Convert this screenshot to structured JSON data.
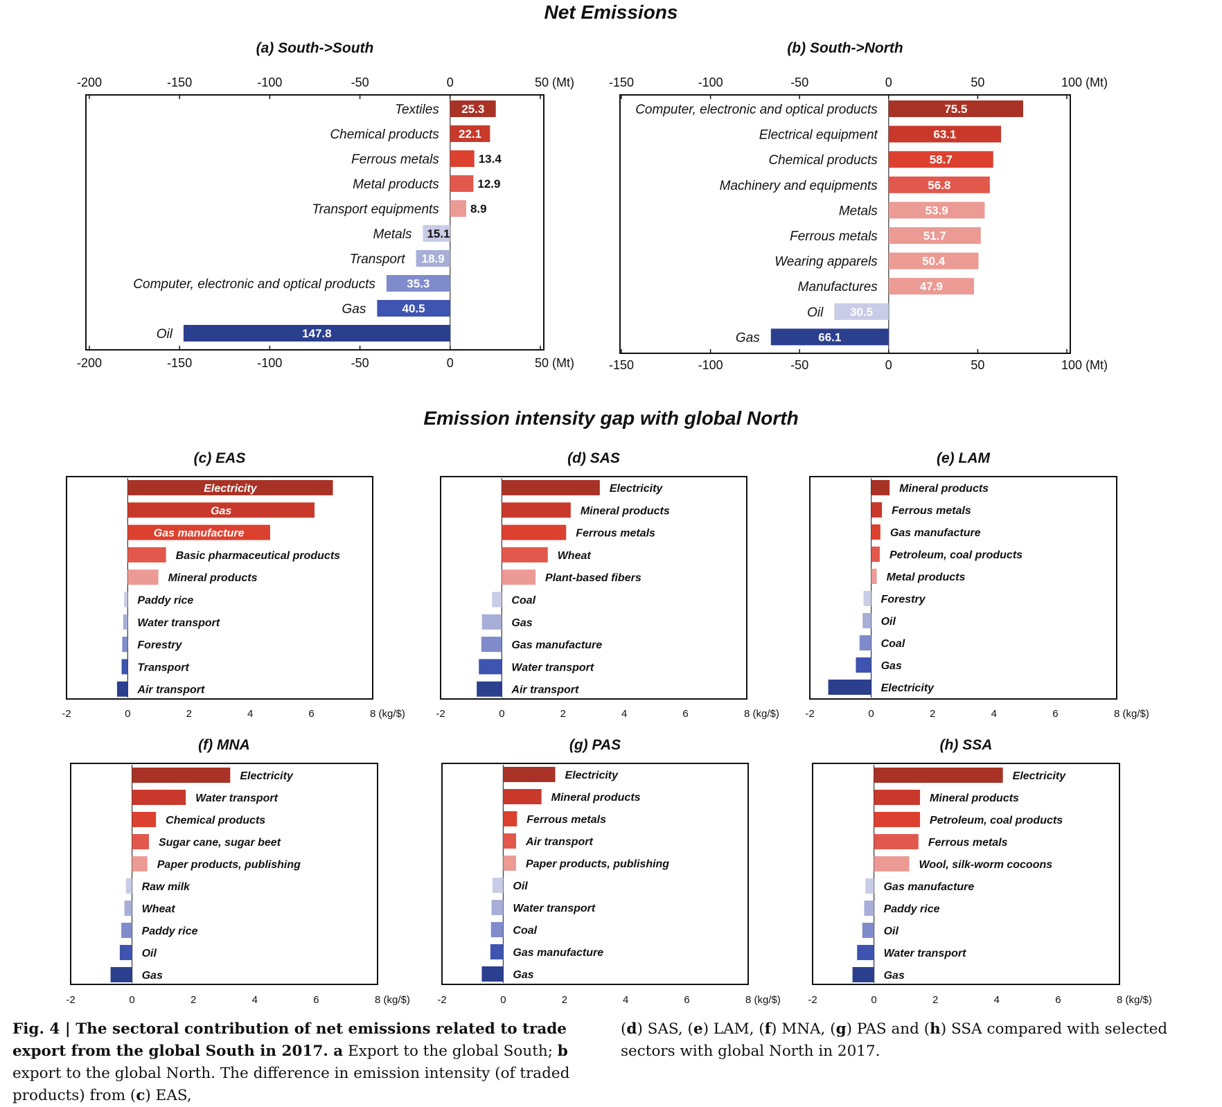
{
  "titles": {
    "net_emissions": "Net Emissions",
    "intensity_gap": "Emission intensity gap with global North"
  },
  "colors": {
    "red_scale": [
      "#a93226",
      "#c8392b",
      "#dc4130",
      "#e2584c",
      "#ec9a94"
    ],
    "blue_scale": [
      "#c8cce6",
      "#a7aed8",
      "#7f8bcb",
      "#3f54b0",
      "#2b3f8f"
    ],
    "text_white": "#ffffff"
  },
  "caption": {
    "fig": "Fig. 4 | ",
    "title": "The sectoral contribution of net emissions related to trade export from the global South in 2017. ",
    "a": "a",
    "a_text": " Export to the global South; ",
    "b": "b",
    "b_text": " export to the global North. The difference in emission intensity (of traded products) from (",
    "c": "c",
    "c_text": ") EAS,",
    "d": "d",
    "d_text": ") SAS, (",
    "e": "e",
    "e_text": ") LAM, (",
    "f": "f",
    "f_text": ") MNA, (",
    "g": "g",
    "g_text": ") PAS and (",
    "h": "h",
    "h_text": ") SSA compared with selected sectors with global North in 2017.",
    "open_paren": "(",
    "close_paren": ")"
  },
  "chart_data": [
    {
      "id": "a",
      "type": "bar",
      "orientation": "horizontal",
      "title": "(a) South->South",
      "unit": "(Mt)",
      "xlim": [
        -200,
        50
      ],
      "ticks": [
        -200,
        -150,
        -100,
        -50,
        0,
        50
      ],
      "tick_labels_top": true,
      "tick_labels_bottom": true,
      "categories": [
        "Textiles",
        "Chemical products",
        "Ferrous metals",
        "Metal products",
        "Transport equipments",
        "Metals",
        "Transport",
        "Computer, electronic and optical products",
        "Gas",
        "Oil"
      ],
      "values": [
        25.3,
        22.1,
        13.4,
        12.9,
        8.9,
        -15.1,
        -18.9,
        -35.3,
        -40.5,
        -147.8
      ],
      "value_labels": [
        "25.3",
        "22.1",
        "13.4",
        "12.9",
        "8.9",
        "15.1",
        "18.9",
        "35.3",
        "40.5",
        "147.8"
      ]
    },
    {
      "id": "b",
      "type": "bar",
      "orientation": "horizontal",
      "title": "(b) South->North",
      "unit": "(Mt)",
      "xlim": [
        -150,
        100
      ],
      "ticks": [
        -150,
        -100,
        -50,
        0,
        50,
        100
      ],
      "tick_labels_top": true,
      "tick_labels_bottom": true,
      "categories": [
        "Computer, electronic and optical products",
        "Electrical equipment",
        "Chemical products",
        "Machinery and equipments",
        "Metals",
        "Ferrous metals",
        "Wearing apparels",
        "Manufactures",
        "Oil",
        "Gas"
      ],
      "values": [
        75.5,
        63.1,
        58.7,
        56.8,
        53.9,
        51.7,
        50.4,
        47.9,
        -30.5,
        -66.1
      ],
      "value_labels": [
        "75.5",
        "63.1",
        "58.7",
        "56.8",
        "53.9",
        "51.7",
        "50.4",
        "47.9",
        "30.5",
        "66.1"
      ]
    },
    {
      "id": "c",
      "type": "bar",
      "orientation": "horizontal",
      "title": "(c) EAS",
      "unit": "(kg/$)",
      "xlim": [
        -2,
        8
      ],
      "ticks": [
        -2,
        0,
        2,
        4,
        6,
        8
      ],
      "categories": [
        "Electricity",
        "Gas",
        "Gas manufacture",
        "Basic pharmaceutical products",
        "Mineral products",
        "Paddy rice",
        "Water transport",
        "Forestry",
        "Transport",
        "Air transport"
      ],
      "values": [
        6.7,
        6.1,
        4.65,
        1.25,
        1.0,
        -0.12,
        -0.15,
        -0.18,
        -0.2,
        -0.35
      ],
      "inside_labels": [
        true,
        true,
        true,
        false,
        false,
        false,
        false,
        false,
        false,
        false
      ]
    },
    {
      "id": "d",
      "type": "bar",
      "orientation": "horizontal",
      "title": "(d) SAS",
      "unit": "(kg/$)",
      "xlim": [
        -2,
        8
      ],
      "ticks": [
        -2,
        0,
        2,
        4,
        6,
        8
      ],
      "categories": [
        "Electricity",
        "Mineral products",
        "Ferrous metals",
        "Wheat",
        "Plant-based fibers",
        "Coal",
        "Gas",
        "Gas manufacture",
        "Water transport",
        "Air transport"
      ],
      "values": [
        3.2,
        2.25,
        2.1,
        1.5,
        1.1,
        -0.32,
        -0.65,
        -0.67,
        -0.75,
        -0.82
      ]
    },
    {
      "id": "e",
      "type": "bar",
      "orientation": "horizontal",
      "title": "(e) LAM",
      "unit": "(kg/$)",
      "xlim": [
        -2,
        8
      ],
      "ticks": [
        -2,
        0,
        2,
        4,
        6,
        8
      ],
      "categories": [
        "Mineral products",
        "Ferrous metals",
        "Gas manufacture",
        "Petroleum, coal products",
        "Metal products",
        "Forestry",
        "Oil",
        "Coal",
        "Gas",
        "Electricity"
      ],
      "values": [
        0.6,
        0.35,
        0.3,
        0.28,
        0.18,
        -0.25,
        -0.28,
        -0.38,
        -0.5,
        -1.4
      ]
    },
    {
      "id": "f",
      "type": "bar",
      "orientation": "horizontal",
      "title": "(f) MNA",
      "unit": "(kg/$)",
      "xlim": [
        -2,
        8
      ],
      "ticks": [
        -2,
        0,
        2,
        4,
        6,
        8
      ],
      "categories": [
        "Electricity",
        "Water transport",
        "Chemical products",
        "Sugar cane, sugar beet",
        "Paper products, publishing",
        "Raw milk",
        "Wheat",
        "Paddy rice",
        "Oil",
        "Gas"
      ],
      "values": [
        3.2,
        1.75,
        0.78,
        0.55,
        0.5,
        -0.2,
        -0.25,
        -0.35,
        -0.4,
        -0.7
      ]
    },
    {
      "id": "g",
      "type": "bar",
      "orientation": "horizontal",
      "title": "(g) PAS",
      "unit": "(kg/$)",
      "xlim": [
        -2,
        8
      ],
      "ticks": [
        -2,
        0,
        2,
        4,
        6,
        8
      ],
      "categories": [
        "Electricity",
        "Mineral products",
        "Ferrous metals",
        "Air transport",
        "Paper products, publishing",
        "Oil",
        "Water transport",
        "Coal",
        "Gas manufacture",
        "Gas"
      ],
      "values": [
        1.7,
        1.25,
        0.45,
        0.42,
        0.42,
        -0.35,
        -0.38,
        -0.4,
        -0.42,
        -0.7
      ]
    },
    {
      "id": "h",
      "type": "bar",
      "orientation": "horizontal",
      "title": "(h) SSA",
      "unit": "(kg/$)",
      "xlim": [
        -2,
        8
      ],
      "ticks": [
        -2,
        0,
        2,
        4,
        6,
        8
      ],
      "categories": [
        "Electricity",
        "Mineral products",
        "Petroleum, coal products",
        "Ferrous metals",
        "Wool, silk-worm cocoons",
        "Gas manufacture",
        "Paddy rice",
        "Oil",
        "Water transport",
        "Gas"
      ],
      "values": [
        4.2,
        1.5,
        1.5,
        1.45,
        1.15,
        -0.28,
        -0.32,
        -0.38,
        -0.55,
        -0.7
      ]
    }
  ]
}
